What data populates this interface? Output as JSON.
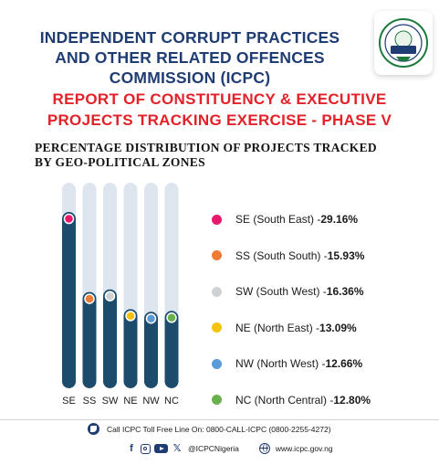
{
  "header": {
    "title": "INDEPENDENT CORRUPT PRACTICES AND OTHER RELATED OFFENCES COMMISSION (ICPC)",
    "logo_icon": "icpc-seal-logo"
  },
  "report_title": "REPORT OF CONSTITUENCY & EXECUTIVE PROJECTS TRACKING EXERCISE - PHASE V",
  "chart_data": {
    "type": "bar",
    "title_lines": [
      "PERCENTAGE DISTRIBUTION OF PROJECTS TRACKED",
      "BY GEO-POLITICAL ZONES"
    ],
    "categories": [
      "SE",
      "SS",
      "SW",
      "NE",
      "NW",
      "NC"
    ],
    "values": [
      29.16,
      15.93,
      16.36,
      13.09,
      12.66,
      12.8
    ],
    "colors": [
      "#e8186d",
      "#ef7c34",
      "#cfd2d4",
      "#f5c20f",
      "#5b9ad8",
      "#6ab04c"
    ],
    "bar_color": "#1c4b6b",
    "track_color": "#dde6ef",
    "ylim": [
      0,
      34
    ],
    "grid": false,
    "legend_position": "right",
    "legend": [
      {
        "label": "SE (South East) - ",
        "value": "29.16%",
        "color": "#e8186d"
      },
      {
        "label": "SS (South South) - ",
        "value": "15.93%",
        "color": "#ef7c34"
      },
      {
        "label": "SW (South West) - ",
        "value": "16.36%",
        "color": "#cfd2d4"
      },
      {
        "label": "NE (North East) - ",
        "value": "13.09%",
        "color": "#f5c20f"
      },
      {
        "label": "NW (North West) - ",
        "value": "12.66%",
        "color": "#5b9ad8"
      },
      {
        "label": "NC (North Central) - ",
        "value": "12.80%",
        "color": "#6ab04c"
      }
    ]
  },
  "footer": {
    "phone_text": "Call ICPC Toll Free Line On: 0800-CALL-ICPC (0800-2255-4272)",
    "phone_icon": "phone-icon",
    "social_handle": "@ICPCNigeria",
    "website": "www.icpc.gov.ng",
    "social_icons": [
      "facebook-icon",
      "instagram-icon",
      "youtube-icon",
      "x-icon"
    ]
  }
}
